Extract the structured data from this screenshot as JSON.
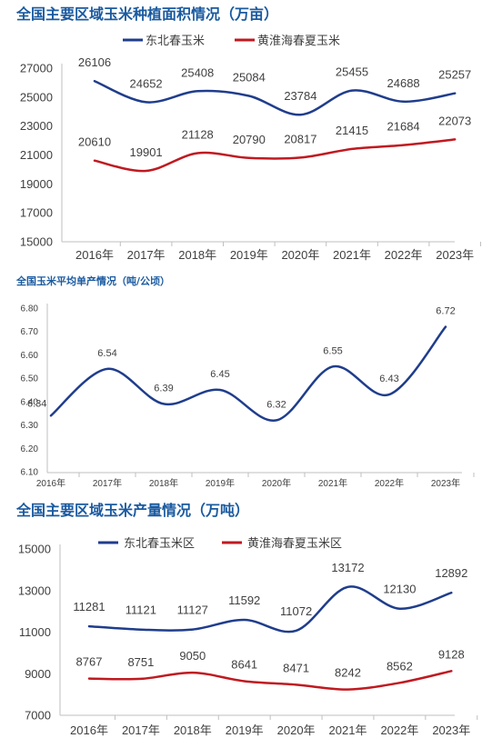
{
  "chart_data": [
    {
      "type": "line",
      "title": "全国主要区域玉米种植面积情况（万亩）",
      "categories": [
        "2016年",
        "2017年",
        "2018年",
        "2019年",
        "2020年",
        "2021年",
        "2022年",
        "2023年"
      ],
      "series": [
        {
          "name": "东北春玉米",
          "color": "#1f3d8c",
          "values": [
            26106,
            24652,
            25408,
            25084,
            23784,
            25455,
            24688,
            25257
          ]
        },
        {
          "name": "黄淮海春夏玉米",
          "color": "#c01920",
          "values": [
            20610,
            19901,
            21128,
            20790,
            20817,
            21415,
            21684,
            22073
          ]
        }
      ],
      "yticks": [
        "15000",
        "17000",
        "19000",
        "21000",
        "23000",
        "25000",
        "27000"
      ],
      "ylim": [
        15000,
        27000
      ],
      "legend": "top",
      "grid": false
    },
    {
      "type": "line",
      "title": "全国玉米平均单产情况（吨/公顷）",
      "categories": [
        "2016年",
        "2017年",
        "2018年",
        "2019年",
        "2020年",
        "2021年",
        "2022年",
        "2023年"
      ],
      "series": [
        {
          "color": "#1f3d8c",
          "values": [
            6.34,
            6.54,
            6.39,
            6.45,
            6.32,
            6.55,
            6.43,
            6.72
          ]
        }
      ],
      "value_labels": [
        "6.34",
        "6.54",
        "6.39",
        "6.45",
        "6.32",
        "6.55",
        "6.43",
        "6.72"
      ],
      "yticks": [
        "6.10",
        "6.20",
        "6.30",
        "6.40",
        "6.50",
        "6.60",
        "6.70",
        "6.80"
      ],
      "ylim": [
        6.1,
        6.8
      ],
      "grid": false
    },
    {
      "type": "line",
      "title": "全国主要区域玉米产量情况（万吨）",
      "categories": [
        "2016年",
        "2017年",
        "2018年",
        "2019年",
        "2020年",
        "2021年",
        "2022年",
        "2023年"
      ],
      "series": [
        {
          "name": "东北春玉米区",
          "color": "#1f3d8c",
          "values": [
            11281,
            11121,
            11127,
            11592,
            11072,
            13172,
            12130,
            12892
          ]
        },
        {
          "name": "黄淮海春夏玉米区",
          "color": "#c01920",
          "values": [
            8767,
            8751,
            9050,
            8641,
            8471,
            8242,
            8562,
            9128
          ]
        }
      ],
      "yticks": [
        "7000",
        "9000",
        "11000",
        "13000",
        "15000"
      ],
      "ylim": [
        7000,
        15000
      ],
      "legend": "top",
      "grid": false
    }
  ]
}
